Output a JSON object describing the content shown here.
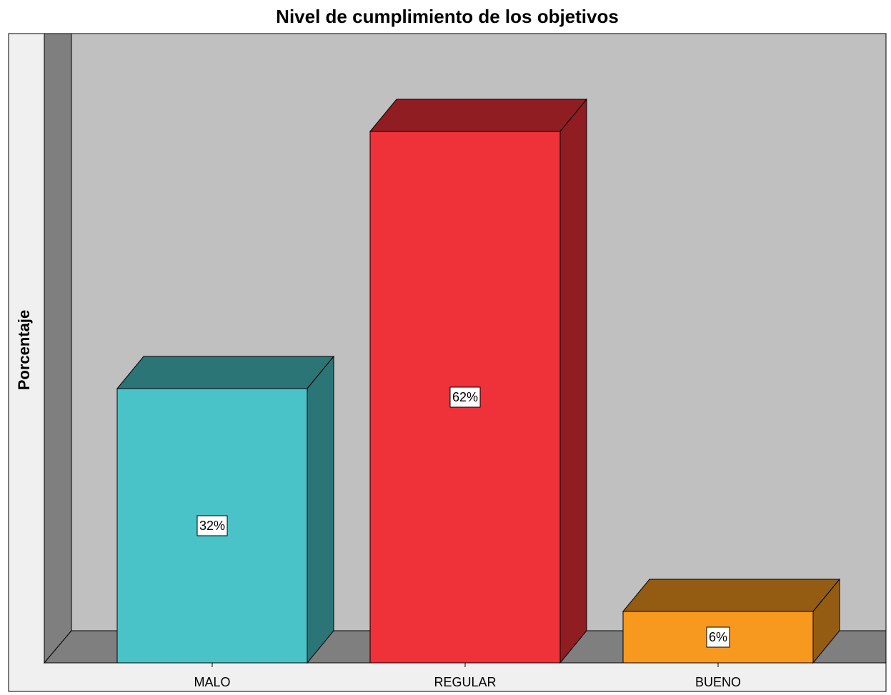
{
  "chart_data": {
    "type": "bar3d",
    "title": "Nivel de cumplimiento de los objetivos",
    "y_label": "Porcentaje",
    "categories": [
      "MALO",
      "REGULAR",
      "BUENO"
    ],
    "values": [
      32,
      62,
      6
    ],
    "value_labels": [
      "32%",
      "62%",
      "6%"
    ],
    "colors": [
      "#49c3c7",
      "#ef3139",
      "#f7991f"
    ],
    "ylim": [
      0,
      73
    ]
  }
}
